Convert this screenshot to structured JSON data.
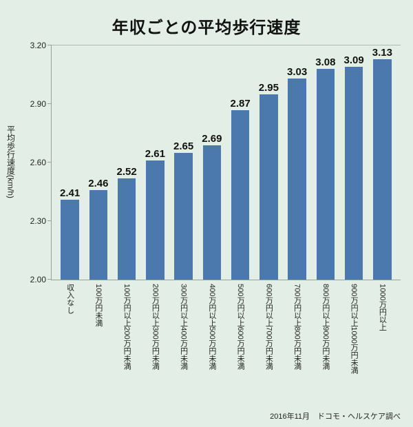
{
  "footer": "2016年11月　ドコモ・ヘルスケア調べ",
  "colors": {
    "background": "#e3efe6",
    "bar": "#4b79ad",
    "axis": "#93a39b"
  },
  "chart_data": {
    "type": "bar",
    "title": "年収ごとの平均歩行速度",
    "ylabel": "平均歩行速度(km/h)",
    "xlabel": "",
    "ylim": [
      2.0,
      3.2
    ],
    "yticks": [
      3.2,
      2.9,
      2.6,
      2.3,
      2.0
    ],
    "grid": false,
    "legend": "none",
    "categories": [
      "収入なし",
      "100万円未満",
      "100万円以上200万円未満",
      "200万円以上300万円未満",
      "300万円以上400万円未満",
      "400万円以上500万円未満",
      "500万円以上600万円未満",
      "600万円以上700万円未満",
      "700万円以上800万円未満",
      "800万円以上900万円未満",
      "900万円以上1000万円未満",
      "1000万円以上"
    ],
    "values": [
      2.41,
      2.46,
      2.52,
      2.61,
      2.65,
      2.69,
      2.87,
      2.95,
      3.03,
      3.08,
      3.09,
      3.13
    ]
  }
}
